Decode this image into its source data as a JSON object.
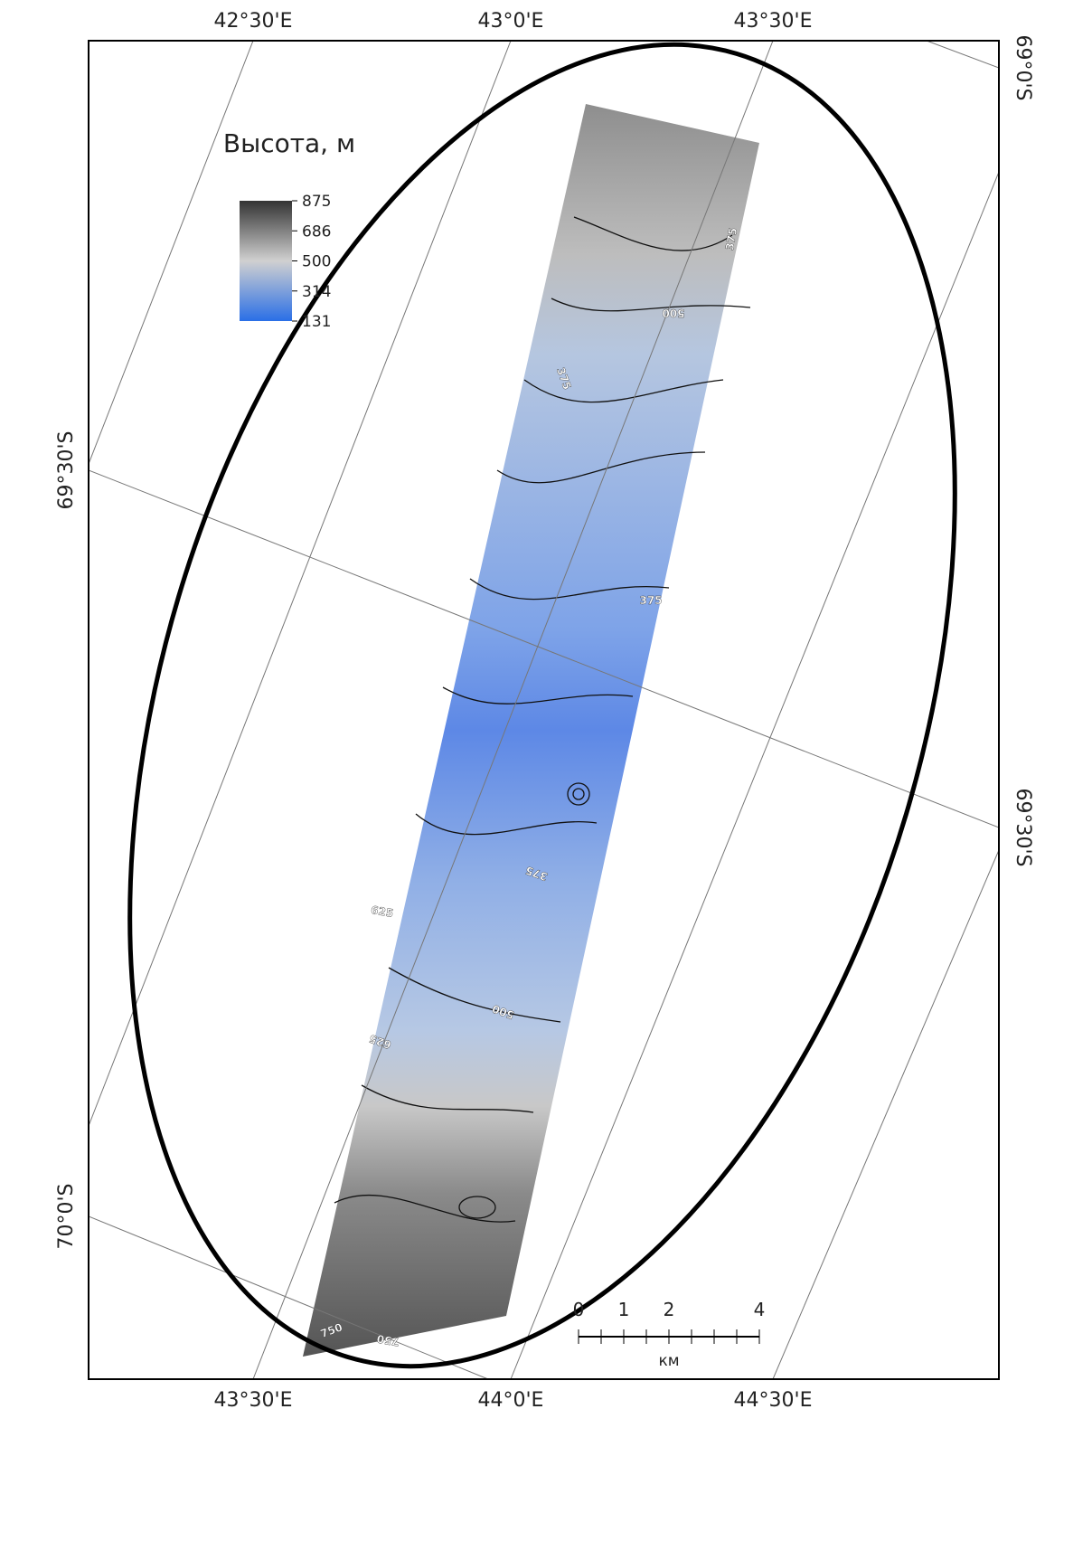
{
  "map_labels": {
    "top": [
      "42°30'E",
      "43°0'E",
      "43°30'E"
    ],
    "bottom": [
      "43°30'E",
      "44°0'E",
      "44°30'E"
    ],
    "left": [
      "69°30'S",
      "70°0'S"
    ],
    "right": [
      "69°0'S",
      "69°30'S"
    ]
  },
  "legend": {
    "title": "Высота, м",
    "ticks": [
      "875",
      "686",
      "500",
      "314",
      "131"
    ]
  },
  "scale_bar": {
    "ticks": [
      "0",
      "1",
      "2",
      "4"
    ],
    "unit": "км"
  },
  "contour_labels": [
    "375",
    "500",
    "375",
    "375",
    "375",
    "500",
    "625",
    "625",
    "750",
    "750"
  ]
}
